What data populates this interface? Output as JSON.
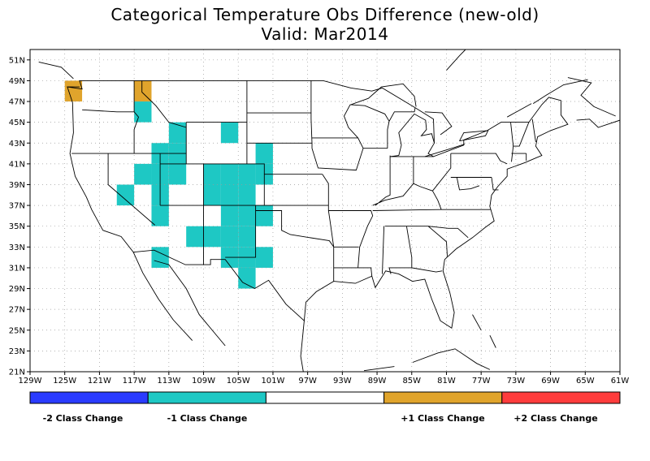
{
  "title": "Categorical Temperature Obs Difference (new-old)",
  "subtitle": "Valid: Mar2014",
  "map": {
    "lon_labels": [
      "129W",
      "125W",
      "121W",
      "117W",
      "113W",
      "109W",
      "105W",
      "101W",
      "97W",
      "93W",
      "89W",
      "85W",
      "81W",
      "77W",
      "73W",
      "69W",
      "65W",
      "61W"
    ],
    "lat_labels": [
      "51N",
      "49N",
      "47N",
      "45N",
      "43N",
      "41N",
      "39N",
      "37N",
      "35N",
      "33N",
      "31N",
      "29N",
      "27N",
      "25N",
      "23N",
      "21N"
    ],
    "cell_size_deg": 2,
    "cells": [
      {
        "lon": -124,
        "lat": 48,
        "cls": "+1"
      },
      {
        "lon": -116,
        "lat": 48,
        "cls": "+1"
      },
      {
        "lon": -116,
        "lat": 46,
        "cls": "-1"
      },
      {
        "lon": -112,
        "lat": 44,
        "cls": "-1"
      },
      {
        "lon": -112,
        "lat": 42,
        "cls": "-1"
      },
      {
        "lon": -114,
        "lat": 42,
        "cls": "-1"
      },
      {
        "lon": -106,
        "lat": 44,
        "cls": "-1"
      },
      {
        "lon": -102,
        "lat": 42,
        "cls": "-1"
      },
      {
        "lon": -116,
        "lat": 40,
        "cls": "-1"
      },
      {
        "lon": -114,
        "lat": 40,
        "cls": "-1"
      },
      {
        "lon": -112,
        "lat": 40,
        "cls": "-1"
      },
      {
        "lon": -108,
        "lat": 40,
        "cls": "-1"
      },
      {
        "lon": -106,
        "lat": 40,
        "cls": "-1"
      },
      {
        "lon": -104,
        "lat": 40,
        "cls": "-1"
      },
      {
        "lon": -102,
        "lat": 40,
        "cls": "-1"
      },
      {
        "lon": -118,
        "lat": 38,
        "cls": "-1"
      },
      {
        "lon": -114,
        "lat": 38,
        "cls": "-1"
      },
      {
        "lon": -108,
        "lat": 38,
        "cls": "-1"
      },
      {
        "lon": -106,
        "lat": 38,
        "cls": "-1"
      },
      {
        "lon": -104,
        "lat": 38,
        "cls": "-1"
      },
      {
        "lon": -114,
        "lat": 36,
        "cls": "-1"
      },
      {
        "lon": -106,
        "lat": 36,
        "cls": "-1"
      },
      {
        "lon": -104,
        "lat": 36,
        "cls": "-1"
      },
      {
        "lon": -102,
        "lat": 36,
        "cls": "-1"
      },
      {
        "lon": -110,
        "lat": 34,
        "cls": "-1"
      },
      {
        "lon": -108,
        "lat": 34,
        "cls": "-1"
      },
      {
        "lon": -106,
        "lat": 34,
        "cls": "-1"
      },
      {
        "lon": -104,
        "lat": 34,
        "cls": "-1"
      },
      {
        "lon": -114,
        "lat": 32,
        "cls": "-1"
      },
      {
        "lon": -106,
        "lat": 32,
        "cls": "-1"
      },
      {
        "lon": -104,
        "lat": 32,
        "cls": "-1"
      },
      {
        "lon": -102,
        "lat": 32,
        "cls": "-1"
      },
      {
        "lon": -104,
        "lat": 30,
        "cls": "-1"
      }
    ]
  },
  "legend": {
    "categories": [
      {
        "label": "-2 Class Change",
        "color": "#2a3bff",
        "cls": "-2"
      },
      {
        "label": "-1 Class Change",
        "color": "#1ec8c4",
        "cls": "-1"
      },
      {
        "label": "",
        "color": "#ffffff",
        "cls": "0"
      },
      {
        "label": "+1 Class Change",
        "color": "#e0a42c",
        "cls": "+1"
      },
      {
        "label": "+2 Class Change",
        "color": "#ff3c3c",
        "cls": "+2"
      }
    ]
  }
}
